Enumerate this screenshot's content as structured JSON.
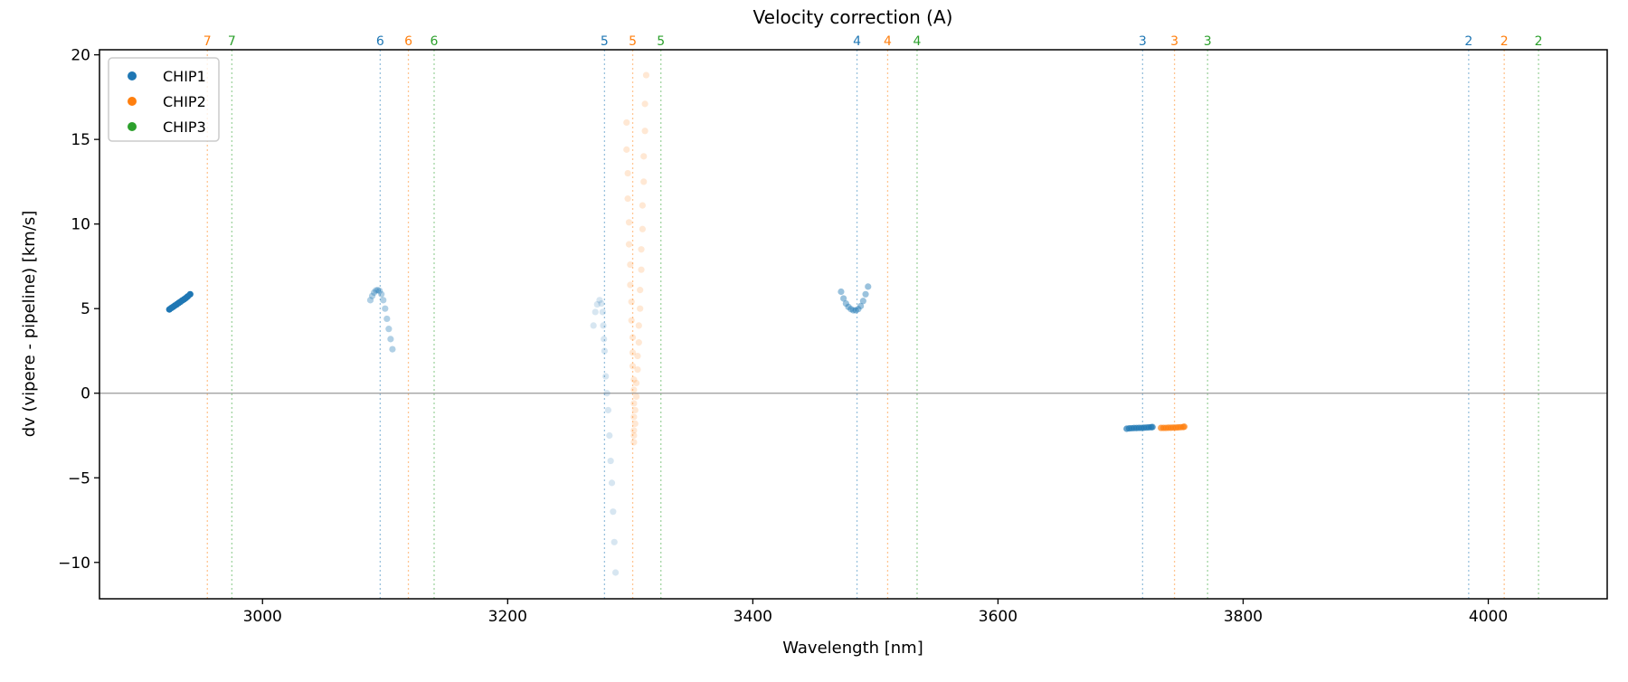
{
  "chart_data": {
    "type": "scatter",
    "title": "Velocity correction (A)",
    "xlabel": "Wavelength [nm]",
    "ylabel": "dv (vipere - pipeline) [km/s]",
    "xlim": [
      2867,
      4097
    ],
    "ylim": [
      -12.15,
      20.3
    ],
    "xticks": [
      3000,
      3200,
      3400,
      3600,
      3800,
      4000
    ],
    "yticks": [
      -10,
      -5,
      0,
      5,
      10,
      15,
      20
    ],
    "grid": false,
    "hline": 0,
    "legend": {
      "placement": "top-left",
      "entries": [
        "CHIP1",
        "CHIP2",
        "CHIP3"
      ]
    },
    "colors": {
      "CHIP1": "#1f77b4",
      "CHIP2": "#ff7f0e",
      "CHIP3": "#2ca02c",
      "zero_line": "#999999"
    },
    "order_markers": [
      {
        "chip": "CHIP2",
        "order": "7",
        "x": 2955
      },
      {
        "chip": "CHIP3",
        "order": "7",
        "x": 2975
      },
      {
        "chip": "CHIP1",
        "order": "6",
        "x": 3096
      },
      {
        "chip": "CHIP2",
        "order": "6",
        "x": 3119
      },
      {
        "chip": "CHIP3",
        "order": "6",
        "x": 3140
      },
      {
        "chip": "CHIP1",
        "order": "5",
        "x": 3279
      },
      {
        "chip": "CHIP2",
        "order": "5",
        "x": 3302
      },
      {
        "chip": "CHIP3",
        "order": "5",
        "x": 3325
      },
      {
        "chip": "CHIP1",
        "order": "4",
        "x": 3485
      },
      {
        "chip": "CHIP2",
        "order": "4",
        "x": 3510
      },
      {
        "chip": "CHIP3",
        "order": "4",
        "x": 3534
      },
      {
        "chip": "CHIP1",
        "order": "3",
        "x": 3718
      },
      {
        "chip": "CHIP2",
        "order": "3",
        "x": 3744
      },
      {
        "chip": "CHIP3",
        "order": "3",
        "x": 3771
      },
      {
        "chip": "CHIP1",
        "order": "2",
        "x": 3984
      },
      {
        "chip": "CHIP2",
        "order": "2",
        "x": 4013
      },
      {
        "chip": "CHIP3",
        "order": "2",
        "x": 4041
      }
    ],
    "series": [
      {
        "chip": "CHIP1",
        "order": "7",
        "opacity": 1.0,
        "points": [
          [
            2924,
            4.95
          ],
          [
            2925.5,
            5.03
          ],
          [
            2927,
            5.1
          ],
          [
            2928.5,
            5.18
          ],
          [
            2930,
            5.25
          ],
          [
            2931.5,
            5.33
          ],
          [
            2933,
            5.4
          ],
          [
            2934.5,
            5.48
          ],
          [
            2936,
            5.55
          ],
          [
            2937.5,
            5.63
          ],
          [
            2939,
            5.72
          ],
          [
            2941,
            5.85
          ]
        ]
      },
      {
        "chip": "CHIP1",
        "order": "6",
        "opacity": 0.35,
        "points": [
          [
            3088,
            5.5
          ],
          [
            3089.5,
            5.75
          ],
          [
            3091,
            5.95
          ],
          [
            3092.5,
            6.07
          ],
          [
            3094,
            6.1
          ],
          [
            3095.5,
            6.05
          ],
          [
            3097,
            5.85
          ],
          [
            3098.5,
            5.5
          ],
          [
            3100,
            5.0
          ],
          [
            3101.5,
            4.4
          ],
          [
            3103,
            3.8
          ],
          [
            3104.5,
            3.2
          ],
          [
            3106,
            2.6
          ]
        ]
      },
      {
        "chip": "CHIP1",
        "order": "5",
        "opacity": 0.18,
        "points": [
          [
            3270,
            4.0
          ],
          [
            3271.5,
            4.8
          ],
          [
            3273,
            5.25
          ],
          [
            3275,
            5.5
          ],
          [
            3276.5,
            5.3
          ],
          [
            3277.5,
            4.8
          ],
          [
            3278,
            4.0
          ],
          [
            3278.5,
            3.2
          ],
          [
            3279,
            2.5
          ],
          [
            3280,
            1.0
          ],
          [
            3281,
            0.0
          ],
          [
            3282,
            -1.0
          ],
          [
            3283,
            -2.5
          ],
          [
            3284,
            -4.0
          ],
          [
            3285,
            -5.3
          ],
          [
            3286,
            -7.0
          ],
          [
            3287,
            -8.8
          ],
          [
            3288,
            -10.6
          ]
        ]
      },
      {
        "chip": "CHIP2",
        "order": "5",
        "opacity": 0.18,
        "points": [
          [
            3297,
            16.0
          ],
          [
            3297,
            14.4
          ],
          [
            3298,
            13.0
          ],
          [
            3298,
            11.5
          ],
          [
            3299,
            10.1
          ],
          [
            3299,
            8.8
          ],
          [
            3300,
            7.6
          ],
          [
            3300,
            6.4
          ],
          [
            3301,
            5.4
          ],
          [
            3301,
            4.3
          ],
          [
            3302,
            3.3
          ],
          [
            3302,
            2.4
          ],
          [
            3302,
            1.6
          ],
          [
            3303,
            0.8
          ],
          [
            3303,
            0.2
          ],
          [
            3303,
            -0.6
          ],
          [
            3303,
            -1.4
          ],
          [
            3303,
            -2.2
          ],
          [
            3303,
            -2.9
          ],
          [
            3313,
            18.8
          ],
          [
            3312,
            17.1
          ],
          [
            3312,
            15.5
          ],
          [
            3311,
            14.0
          ],
          [
            3311,
            12.5
          ],
          [
            3310,
            11.1
          ],
          [
            3310,
            9.7
          ],
          [
            3309,
            8.5
          ],
          [
            3309,
            7.3
          ],
          [
            3308,
            6.1
          ],
          [
            3308,
            5.0
          ],
          [
            3307,
            4.0
          ],
          [
            3307,
            3.0
          ],
          [
            3306,
            2.2
          ],
          [
            3306,
            1.4
          ],
          [
            3305,
            0.6
          ],
          [
            3305,
            -0.2
          ],
          [
            3304,
            -1.0
          ],
          [
            3304,
            -1.8
          ],
          [
            3303,
            -2.5
          ]
        ]
      },
      {
        "chip": "CHIP1",
        "order": "4",
        "opacity": 0.45,
        "points": [
          [
            3472,
            6.0
          ],
          [
            3474,
            5.6
          ],
          [
            3476,
            5.3
          ],
          [
            3478,
            5.1
          ],
          [
            3480,
            4.97
          ],
          [
            3482,
            4.9
          ],
          [
            3484,
            4.9
          ],
          [
            3486,
            4.97
          ],
          [
            3488,
            5.15
          ],
          [
            3490,
            5.45
          ],
          [
            3492,
            5.85
          ],
          [
            3494,
            6.3
          ]
        ]
      },
      {
        "chip": "CHIP1",
        "order": "3",
        "opacity": 0.7,
        "points": [
          [
            3705,
            -2.1
          ],
          [
            3707,
            -2.08
          ],
          [
            3709,
            -2.07
          ],
          [
            3711,
            -2.06
          ],
          [
            3713,
            -2.06
          ],
          [
            3715,
            -2.05
          ],
          [
            3717,
            -2.05
          ],
          [
            3719,
            -2.04
          ],
          [
            3721,
            -2.03
          ],
          [
            3723,
            -2.02
          ],
          [
            3725,
            -2.01
          ],
          [
            3726,
            -2.0
          ]
        ]
      },
      {
        "chip": "CHIP2",
        "order": "3",
        "opacity": 0.7,
        "points": [
          [
            3733,
            -2.05
          ],
          [
            3735,
            -2.05
          ],
          [
            3737,
            -2.05
          ],
          [
            3739,
            -2.04
          ],
          [
            3741,
            -2.04
          ],
          [
            3743,
            -2.03
          ],
          [
            3745,
            -2.03
          ],
          [
            3747,
            -2.02
          ],
          [
            3749,
            -2.01
          ],
          [
            3751,
            -2.0
          ],
          [
            3752,
            -1.98
          ]
        ]
      }
    ]
  }
}
